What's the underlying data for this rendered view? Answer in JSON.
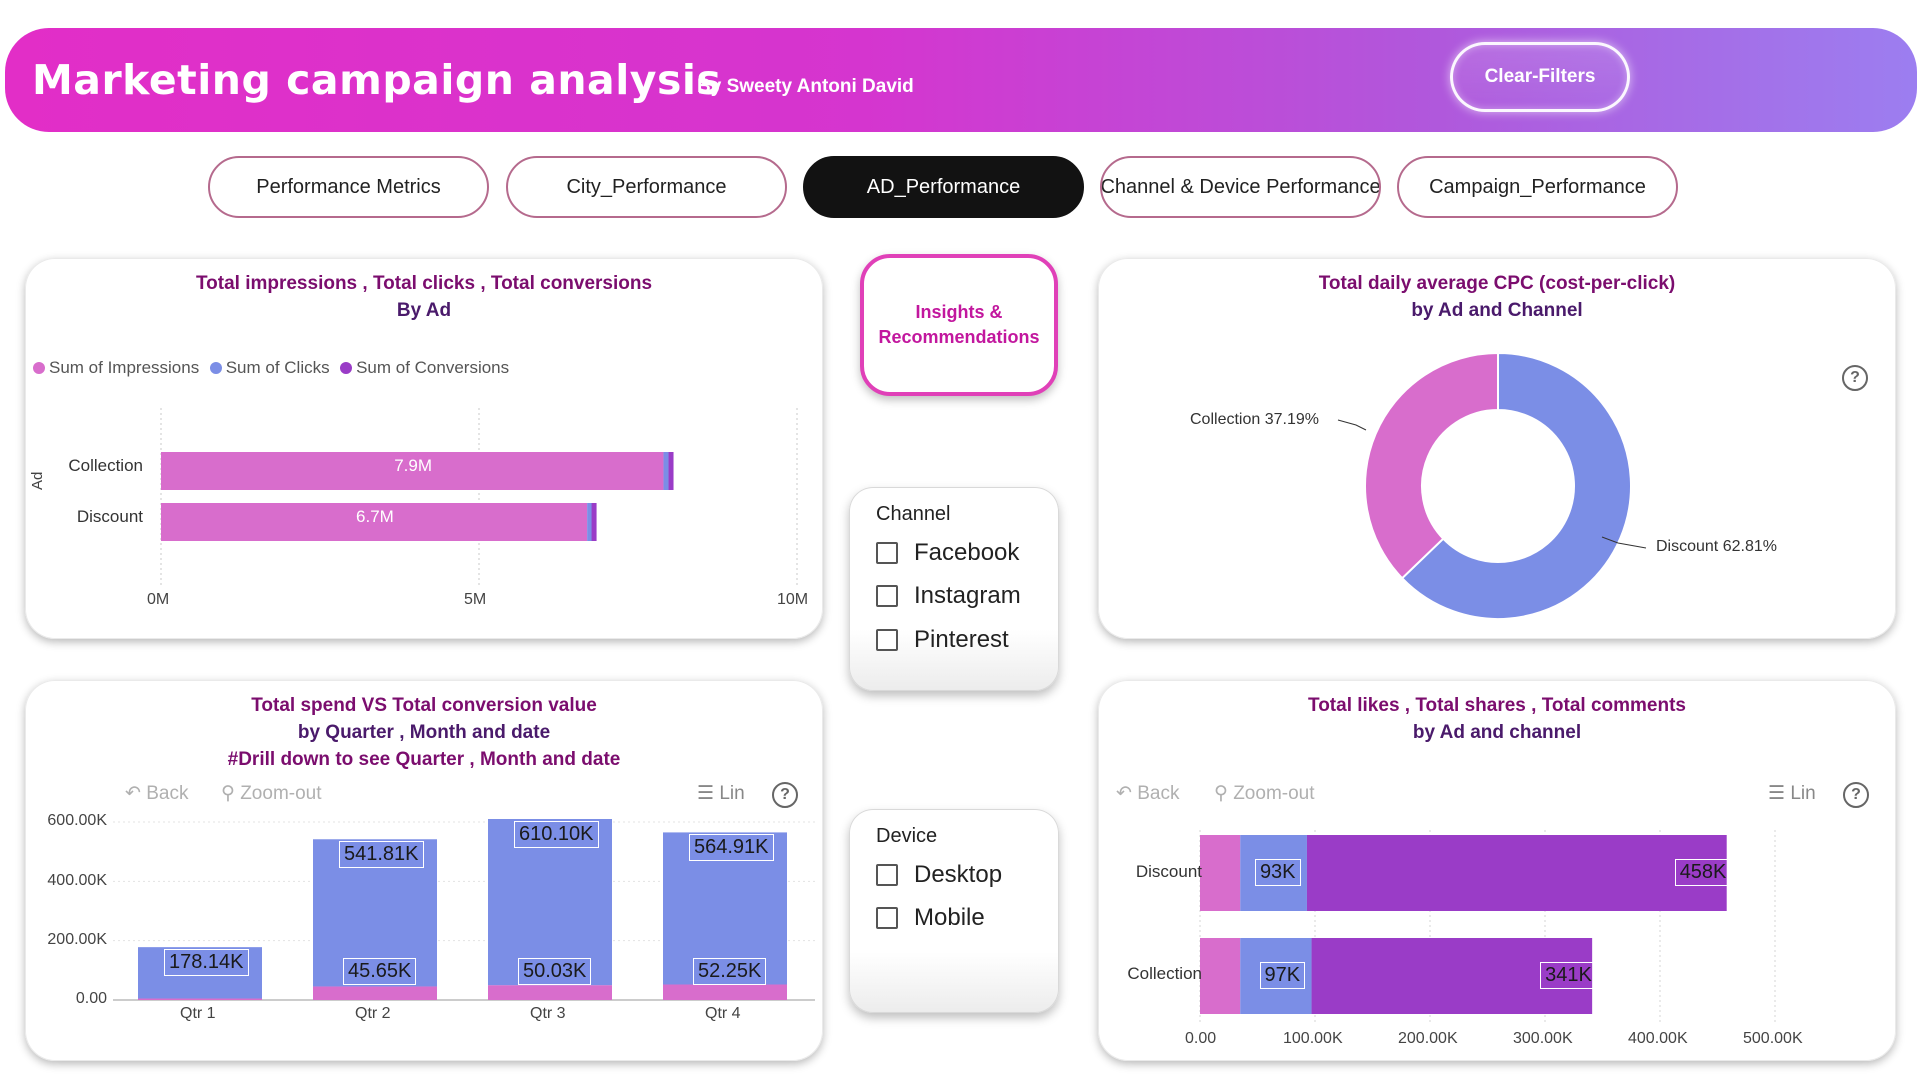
{
  "header": {
    "title": "Marketing campaign analysis",
    "subtitle": "By Sweety Antoni David",
    "clear_filters_label": "Clear-Filters",
    "gradient_colors": [
      "#e22ec7",
      "#9c7ef0"
    ]
  },
  "tabs": [
    {
      "label": "Performance Metrics",
      "active": false
    },
    {
      "label": "City_Performance",
      "active": false
    },
    {
      "label": "AD_Performance",
      "active": true
    },
    {
      "label": "Channel & Device Performance",
      "active": false
    },
    {
      "label": "Campaign_Performance",
      "active": false
    }
  ],
  "insights_button": {
    "line1": "Insights &",
    "line2": "Recommendations"
  },
  "toolbar": {
    "back": "Back",
    "zoom_out": "Zoom-out",
    "lin": "Lin",
    "help": "?"
  },
  "colors": {
    "impressions": "#d86dcc",
    "clicks": "#7b8ee6",
    "conversions": "#9a3cc7",
    "spend": "#7b8ee6",
    "conversion_value": "#d86dcc",
    "likes": "#d86dcc",
    "shares": "#7b8ee6",
    "comments": "#9a3cc7",
    "title_purple": "#7b0d6e"
  },
  "impressions_chart": {
    "title_line1": "Total impressions , Total clicks , Total conversions",
    "title_line2": "By Ad",
    "legend": [
      "Sum of Impressions",
      "Sum of Clicks",
      "Sum of Conversions"
    ],
    "y_axis_title": "Ad",
    "x_ticks": [
      "0M",
      "5M",
      "10M"
    ]
  },
  "cpc_chart": {
    "title_line1": "Total daily average CPC (cost-per-click)",
    "title_line2": "by Ad and Channel",
    "help": "?"
  },
  "channel_slicer": {
    "title": "Channel",
    "options": [
      "Facebook",
      "Instagram",
      "Pinterest"
    ]
  },
  "device_slicer": {
    "title": "Device",
    "options": [
      "Desktop",
      "Mobile"
    ]
  },
  "spend_chart": {
    "title_line1": "Total spend VS Total conversion value",
    "title_line2": "by Quarter , Month and date",
    "title_line3": "#Drill down to see  Quarter , Month and date",
    "y_ticks": [
      "600.00K",
      "400.00K",
      "200.00K",
      "0.00"
    ]
  },
  "engagement_chart": {
    "title_line1": "Total likes , Total shares , Total comments",
    "title_line2": "by Ad and channel",
    "x_ticks": [
      "0.00",
      "100.00K",
      "200.00K",
      "300.00K",
      "400.00K",
      "500.00K"
    ]
  },
  "chart_data": [
    {
      "type": "bar",
      "orientation": "horizontal",
      "stacked": true,
      "title": "Total impressions , Total clicks , Total conversions By Ad",
      "ylabel": "Ad",
      "xlim": [
        0,
        10000000
      ],
      "categories": [
        "Collection",
        "Discount"
      ],
      "series": [
        {
          "name": "Sum of Impressions",
          "values": [
            7900000,
            6700000
          ],
          "labels": [
            "7.9M",
            "6.7M"
          ]
        },
        {
          "name": "Sum of Clicks",
          "values": [
            80000,
            70000
          ]
        },
        {
          "name": "Sum of Conversions",
          "values": [
            8000,
            7000
          ]
        }
      ],
      "legend": "top-left"
    },
    {
      "type": "pie",
      "donut": true,
      "title": "Total daily average CPC (cost-per-click) by Ad and Channel",
      "slices": [
        {
          "label": "Collection",
          "value": 37.19,
          "text": "Collection 37.19%"
        },
        {
          "label": "Discount",
          "value": 62.81,
          "text": "Discount 62.81%"
        }
      ]
    },
    {
      "type": "bar",
      "stacked": true,
      "title": "Total spend VS Total conversion value by Quarter , Month and date",
      "categories": [
        "Qtr 1",
        "Qtr 2",
        "Qtr 3",
        "Qtr 4"
      ],
      "ylim": [
        0,
        600000
      ],
      "series": [
        {
          "name": "conversion value",
          "values": [
            5000,
            45650,
            50030,
            52250
          ],
          "labels": [
            "",
            "45.65K",
            "50.03K",
            "52.25K"
          ]
        },
        {
          "name": "spend",
          "values": [
            173140,
            496160,
            560070,
            512660
          ],
          "labels": [
            "178.14K",
            "541.81K",
            "610.10K",
            "564.91K"
          ]
        }
      ]
    },
    {
      "type": "bar",
      "orientation": "horizontal",
      "stacked": true,
      "title": "Total likes , Total shares , Total comments by Ad and channel",
      "categories": [
        "Discount",
        "Collection"
      ],
      "xlim": [
        0,
        500000
      ],
      "series": [
        {
          "name": "likes",
          "values": [
            35000,
            35000
          ]
        },
        {
          "name": "shares",
          "values": [
            58000,
            62000
          ],
          "labels": [
            "93K",
            "97K"
          ]
        },
        {
          "name": "comments",
          "values": [
            365000,
            244000
          ],
          "labels": [
            "458K",
            "341K"
          ]
        }
      ]
    }
  ]
}
